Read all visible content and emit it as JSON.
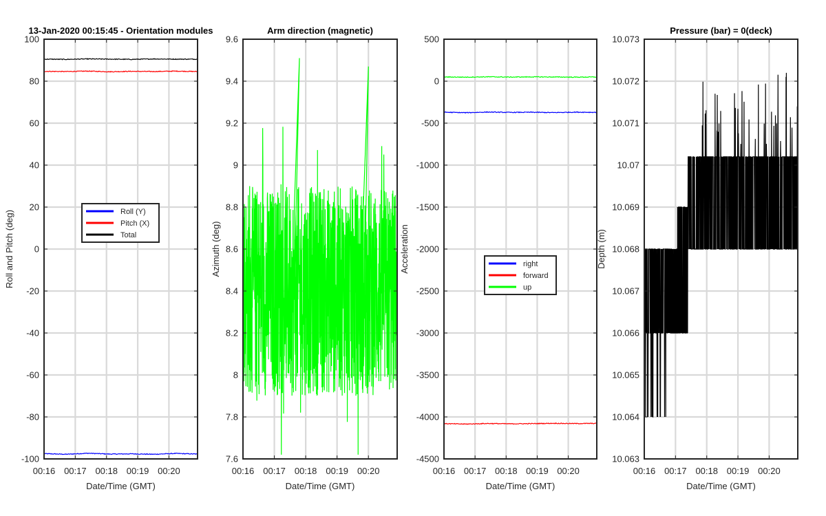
{
  "chart_data": [
    {
      "type": "line",
      "title": "13-Jan-2020 00:15:45 - Orientation modules",
      "xlabel": "Date/Time (GMT)",
      "ylabel": "Roll and Pitch (deg)",
      "xticks": [
        "00:16",
        "00:17",
        "00:18",
        "00:19",
        "00:20"
      ],
      "xrange": [
        "00:16",
        "00:20:55"
      ],
      "ylim": [
        -100,
        100
      ],
      "yticks": [
        -100,
        -80,
        -60,
        -40,
        -20,
        0,
        20,
        40,
        60,
        80,
        100
      ],
      "grid": true,
      "legend_position": "center",
      "series": [
        {
          "name": "Roll (Y)",
          "color": "#0000ff",
          "values": [
            -97.5,
            -97.8,
            -97.3,
            -97.7,
            -97.6,
            -97.8,
            -97.4,
            -97.7
          ]
        },
        {
          "name": "Pitch (X)",
          "color": "#ff0000",
          "values": [
            84.7,
            84.6,
            84.8,
            84.5,
            84.7,
            84.6,
            84.8,
            84.6
          ]
        },
        {
          "name": "Total",
          "color": "#000000",
          "values": [
            90.5,
            90.4,
            90.6,
            90.5,
            90.4,
            90.6,
            90.5,
            90.5
          ]
        }
      ]
    },
    {
      "type": "line",
      "title": "Arm direction (magnetic)",
      "xlabel": "Date/Time (GMT)",
      "ylabel": "Azimuth (deg)",
      "xticks": [
        "00:16",
        "00:17",
        "00:18",
        "00:19",
        "00:20"
      ],
      "xrange": [
        "00:16",
        "00:20:55"
      ],
      "ylim": [
        7.6,
        9.6
      ],
      "yticks": [
        7.6,
        7.8,
        8,
        8.2,
        8.4,
        8.6,
        8.8,
        9,
        9.2,
        9.4,
        9.6
      ],
      "grid": true,
      "series": [
        {
          "color": "#00ff00",
          "mean": 8.4,
          "min": 7.62,
          "max": 9.51
        }
      ]
    },
    {
      "type": "line",
      "xlabel": "Date/Time (GMT)",
      "ylabel": "Acceleration",
      "xticks": [
        "00:16",
        "00:17",
        "00:18",
        "00:19",
        "00:20"
      ],
      "xrange": [
        "00:16",
        "00:20:55"
      ],
      "ylim": [
        -4500,
        500
      ],
      "yticks": [
        -4500,
        -4000,
        -3500,
        -3000,
        -2500,
        -2000,
        -1500,
        -1000,
        -500,
        0,
        500
      ],
      "grid": true,
      "legend_position": "center",
      "series": [
        {
          "name": "right",
          "color": "#0000ff",
          "values": [
            -370,
            -375,
            -368,
            -372,
            -370,
            -374,
            -369,
            -371
          ]
        },
        {
          "name": "forward",
          "color": "#ff0000",
          "values": [
            -4080,
            -4085,
            -4078,
            -4082,
            -4080,
            -4076,
            -4079,
            -4077
          ]
        },
        {
          "name": "up",
          "color": "#00ff00",
          "values": [
            50,
            48,
            52,
            49,
            51,
            50,
            48,
            50
          ]
        }
      ]
    },
    {
      "type": "line",
      "title": "Pressure (bar) = 0(deck)",
      "xlabel": "Date/Time (GMT)",
      "ylabel": "Depth (m)",
      "xticks": [
        "00:16",
        "00:17",
        "00:18",
        "00:19",
        "00:20"
      ],
      "xrange": [
        "00:16",
        "00:20:55"
      ],
      "ylim": [
        10.063,
        10.073
      ],
      "yticks": [
        10.063,
        10.064,
        10.065,
        10.066,
        10.067,
        10.068,
        10.069,
        10.07,
        10.071,
        10.072,
        10.073
      ],
      "grid": true,
      "series": [
        {
          "color": "#000000",
          "mean_start": 10.067,
          "mean_end": 10.0691,
          "min": 10.064,
          "max": 10.0722
        }
      ]
    }
  ]
}
